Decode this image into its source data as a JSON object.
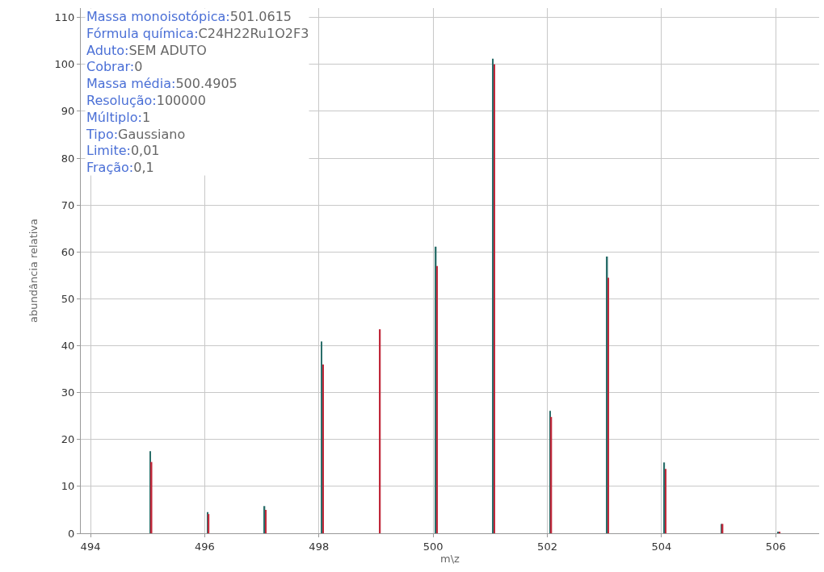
{
  "chart_data": {
    "type": "bar",
    "xlabel": "m\\z",
    "ylabel": "abundância relativa",
    "x": [
      495.06,
      496.06,
      497.06,
      498.06,
      499.06,
      500.06,
      501.06,
      502.06,
      503.06,
      504.06,
      505.06,
      506.06
    ],
    "series": [
      {
        "color": "#2a6e6a",
        "values": [
          17.5,
          4.5,
          5.8,
          40.9,
          null,
          61.1,
          101.2,
          26.1,
          59.0,
          15.1,
          2.0,
          0.2
        ]
      },
      {
        "color": "#c0283a",
        "values": [
          15.2,
          4.1,
          5.0,
          36.0,
          43.5,
          57.0,
          100,
          24.8,
          54.5,
          13.7,
          2.0,
          0.2
        ]
      }
    ],
    "xlim": [
      493.83,
      506.76
    ],
    "xticks": [
      494,
      496,
      498,
      500,
      502,
      504,
      506
    ],
    "ylim": [
      0,
      112
    ],
    "yticks": [
      0,
      10,
      20,
      30,
      40,
      50,
      60,
      70,
      80,
      90,
      100,
      110
    ],
    "grid": true,
    "annotations": [
      "Massa monoisotópica:501.0615",
      "Fórmula química:C24H22Ru1O2F3",
      "Aduto:SEM ADUTO",
      "Cobrar:0",
      "Massa média:500.4905",
      "Resolução:100000",
      "Múltiplo:1",
      "Tipo:Gaussiano",
      "Limite:0,01",
      "Fração:0,1"
    ]
  }
}
